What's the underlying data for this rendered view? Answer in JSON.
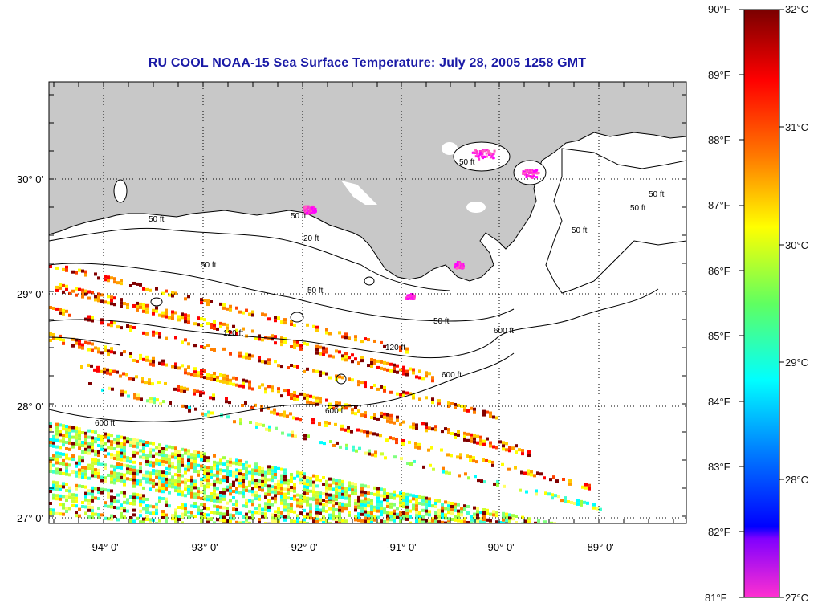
{
  "title": "RU COOL  NOAA-15  Sea Surface Temperature:  July 28, 2005 1258 GMT",
  "longitude_labels": [
    "-94° 0'",
    "-93° 0'",
    "-92° 0'",
    "-91° 0'",
    "-90° 0'",
    "-89° 0'"
  ],
  "latitude_labels": [
    "30° 0'",
    "29° 0'",
    "28° 0'",
    "27° 0'"
  ],
  "colorbar": {
    "fahrenheit": [
      "90°F",
      "89°F",
      "88°F",
      "87°F",
      "86°F",
      "85°F",
      "84°F",
      "83°F",
      "82°F",
      "81°F"
    ],
    "celsius": [
      "32°C",
      "31°C",
      "30°C",
      "29°C",
      "28°C",
      "27°C"
    ],
    "gradient": [
      "#800000",
      "#ff0000",
      "#ff8000",
      "#ffff00",
      "#80ff40",
      "#00ffff",
      "#0080ff",
      "#0000ff",
      "#8000ff",
      "#ff00ff",
      "#ff40c0"
    ]
  },
  "contour_labels": [
    "50 ft",
    "50 ft",
    "50 ft",
    "50 ft",
    "50 ft",
    "50 ft",
    "50 ft",
    "120 ft",
    "120 ft",
    "600 ft",
    "600 ft",
    "600 ft",
    "600 ft",
    "50 ft",
    "50 ft",
    "20 ft"
  ],
  "land_color": "#c8c8c8"
}
